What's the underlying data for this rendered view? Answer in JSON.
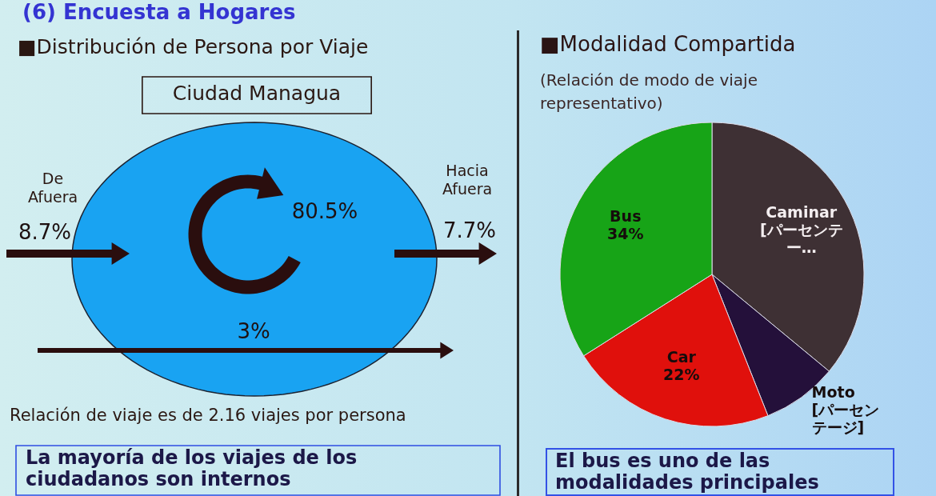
{
  "chart_data": [
    {
      "type": "other",
      "title": "■Distribución de Persona por Viaje",
      "subtitle": "Ciudad Managua",
      "categories": [
        "De Afuera",
        "Hacia Afuera",
        null,
        null
      ],
      "value_labels": [
        "8.7%",
        "7.7%",
        "80.5%",
        "3%"
      ],
      "annotations": [
        "(6) Encuesta a Hogares",
        "Relación de viaje es de 2.16 viajes por persona",
        "La mayoría de los viajes de los ciudadanos son internos"
      ]
    },
    {
      "type": "pie",
      "title": "■Modalidad Compartida",
      "subtitle": "(Relación de modo de viaje representativo)",
      "categories": [
        "Caminar",
        "Moto",
        "Car",
        "Bus"
      ],
      "values": [
        36,
        8,
        22,
        34
      ],
      "colors": [
        "#3e3034",
        "#24103a",
        "#e0100c",
        "#17a417"
      ],
      "value_labels": [
        "[パーセンテー…",
        "[パーセンテージ]",
        "22%",
        "34%"
      ],
      "annotations": [
        "El bus es uno de las modalidades principales"
      ]
    }
  ]
}
